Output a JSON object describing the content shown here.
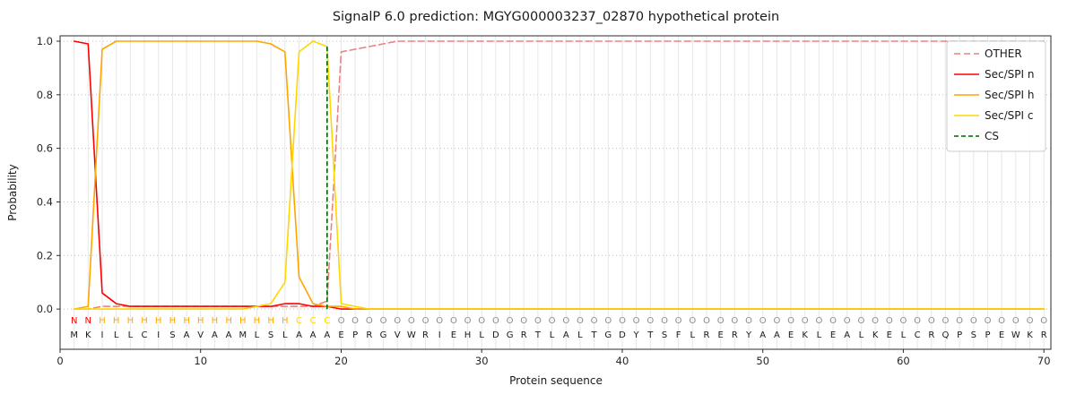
{
  "chart_data": {
    "type": "line",
    "title": "SignalP 6.0 prediction: MGYG000003237_02870 hypothetical protein",
    "xlabel": "Protein sequence",
    "ylabel": "Probability",
    "xlim": [
      0,
      70.5
    ],
    "ylim": [
      -0.15,
      1.02
    ],
    "x_ticks": [
      0,
      10,
      20,
      30,
      40,
      50,
      60,
      70
    ],
    "x_tick_labels": [
      "0",
      "10",
      "20",
      "30",
      "40",
      "50",
      "60",
      "70"
    ],
    "y_ticks": [
      0,
      0.2,
      0.4,
      0.6,
      0.8,
      1.0
    ],
    "y_tick_labels": [
      "0.0",
      "0.2",
      "0.4",
      "0.6",
      "0.8",
      "1.0"
    ],
    "grid": {
      "horizontal": "dotted",
      "vertical_per_residue": true
    },
    "legend_position": "upper right",
    "style": {
      "residue_grid_color": "#e7e7e7",
      "h_grid_color": "#c0c0c0",
      "spine_color": "#2b2b2b",
      "tick_color": "#2b2b2b",
      "sequence_color": "#1a1a1a"
    },
    "sequence": [
      "M",
      "K",
      "I",
      "L",
      "L",
      "C",
      "I",
      "S",
      "A",
      "V",
      "A",
      "A",
      "M",
      "L",
      "S",
      "L",
      "A",
      "A",
      "A",
      "E",
      "P",
      "R",
      "G",
      "V",
      "W",
      "R",
      "I",
      "E",
      "H",
      "L",
      "D",
      "G",
      "R",
      "T",
      "L",
      "A",
      "L",
      "T",
      "G",
      "D",
      "Y",
      "T",
      "S",
      "F",
      "L",
      "R",
      "E",
      "R",
      "Y",
      "A",
      "A",
      "E",
      "K",
      "L",
      "E",
      "A",
      "L",
      "K",
      "E",
      "L",
      "C",
      "R",
      "Q",
      "P",
      "S",
      "P",
      "E",
      "W",
      "K",
      "R"
    ],
    "region_labels": [
      "N",
      "N",
      "H",
      "H",
      "H",
      "H",
      "H",
      "H",
      "H",
      "H",
      "H",
      "H",
      "H",
      "H",
      "H",
      "H",
      "C",
      "C",
      "C",
      "O",
      "O",
      "O",
      "O",
      "O",
      "O",
      "O",
      "O",
      "O",
      "O",
      "O",
      "O",
      "O",
      "O",
      "O",
      "O",
      "O",
      "O",
      "O",
      "O",
      "O",
      "O",
      "O",
      "O",
      "O",
      "O",
      "O",
      "O",
      "O",
      "O",
      "O",
      "O",
      "O",
      "O",
      "O",
      "O",
      "O",
      "O",
      "O",
      "O",
      "O",
      "O",
      "O",
      "O",
      "O",
      "O",
      "O",
      "O",
      "O",
      "O",
      "O"
    ],
    "region_colors": {
      "N": "#ff0000",
      "H": "#ffa500",
      "C": "#ffd700",
      "O": "#8c8c8c"
    },
    "series": [
      {
        "label": "OTHER",
        "type": "line",
        "color": "#f08080",
        "dash": "7,4",
        "values": [
          0,
          0,
          0.01,
          0.01,
          0.01,
          0.01,
          0.01,
          0.01,
          0.01,
          0.01,
          0.01,
          0.01,
          0.01,
          0.01,
          0.01,
          0.01,
          0.01,
          0.01,
          0.03,
          0.96,
          0.97,
          0.98,
          0.99,
          1,
          1,
          1,
          1,
          1,
          1,
          1,
          1,
          1,
          1,
          1,
          1,
          1,
          1,
          1,
          1,
          1,
          1,
          1,
          1,
          1,
          1,
          1,
          1,
          1,
          1,
          1,
          1,
          1,
          1,
          1,
          1,
          1,
          1,
          1,
          1,
          1,
          1,
          1,
          1,
          1,
          1,
          1,
          1,
          1,
          1,
          1
        ]
      },
      {
        "label": "Sec/SPI n",
        "type": "line",
        "color": "#ff0000",
        "dash": null,
        "values": [
          1,
          0.99,
          0.06,
          0.02,
          0.01,
          0.01,
          0.01,
          0.01,
          0.01,
          0.01,
          0.01,
          0.01,
          0.01,
          0.01,
          0.01,
          0.02,
          0.02,
          0.01,
          0.01,
          0,
          0,
          0,
          0,
          0,
          0,
          0,
          0,
          0,
          0,
          0,
          0,
          0,
          0,
          0,
          0,
          0,
          0,
          0,
          0,
          0,
          0,
          0,
          0,
          0,
          0,
          0,
          0,
          0,
          0,
          0,
          0,
          0,
          0,
          0,
          0,
          0,
          0,
          0,
          0,
          0,
          0,
          0,
          0,
          0,
          0,
          0,
          0,
          0,
          0,
          0
        ]
      },
      {
        "label": "Sec/SPI h",
        "type": "line",
        "color": "#ffa500",
        "dash": null,
        "values": [
          0,
          0.01,
          0.97,
          1,
          1,
          1,
          1,
          1,
          1,
          1,
          1,
          1,
          1,
          1,
          0.99,
          0.96,
          0.12,
          0.02,
          0.01,
          0.01,
          0,
          0,
          0,
          0,
          0,
          0,
          0,
          0,
          0,
          0,
          0,
          0,
          0,
          0,
          0,
          0,
          0,
          0,
          0,
          0,
          0,
          0,
          0,
          0,
          0,
          0,
          0,
          0,
          0,
          0,
          0,
          0,
          0,
          0,
          0,
          0,
          0,
          0,
          0,
          0,
          0,
          0,
          0,
          0,
          0,
          0,
          0,
          0,
          0,
          0
        ]
      },
      {
        "label": "Sec/SPI c",
        "type": "line",
        "color": "#ffd700",
        "dash": null,
        "values": [
          0,
          0,
          0,
          0,
          0,
          0,
          0,
          0,
          0,
          0,
          0,
          0,
          0,
          0.01,
          0.02,
          0.1,
          0.96,
          1,
          0.98,
          0.02,
          0.01,
          0,
          0,
          0,
          0,
          0,
          0,
          0,
          0,
          0,
          0,
          0,
          0,
          0,
          0,
          0,
          0,
          0,
          0,
          0,
          0,
          0,
          0,
          0,
          0,
          0,
          0,
          0,
          0,
          0,
          0,
          0,
          0,
          0,
          0,
          0,
          0,
          0,
          0,
          0,
          0,
          0,
          0,
          0,
          0,
          0,
          0,
          0,
          0,
          0
        ]
      },
      {
        "label": "CS",
        "type": "vline",
        "color": "#006400",
        "dash": "5,3",
        "x": 19,
        "y_from": 0,
        "y_to": 0.98
      }
    ]
  }
}
